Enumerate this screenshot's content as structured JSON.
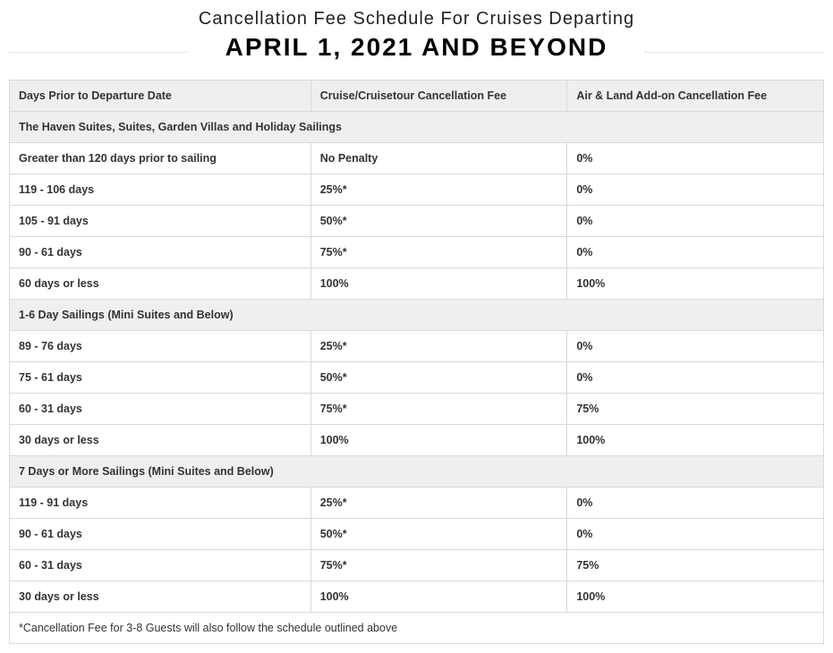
{
  "header": {
    "subtitle": "Cancellation Fee Schedule For Cruises Departing",
    "title": "APRIL 1, 2021 AND BEYOND"
  },
  "table": {
    "type": "table",
    "columns": [
      "Days Prior to Departure Date",
      "Cruise/Cruisetour Cancellation Fee",
      "Air & Land Add-on Cancellation Fee"
    ],
    "column_widths": [
      "37%",
      "31.5%",
      "31.5%"
    ],
    "header_bg": "#efefef",
    "section_bg": "#efefef",
    "border_color": "#d9d9d9",
    "text_color": "#333333",
    "font_size": 12.5,
    "sections": [
      {
        "label": "The Haven Suites, Suites, Garden Villas and Holiday Sailings",
        "rows": [
          [
            "Greater than 120 days prior to sailing",
            "No Penalty",
            "0%"
          ],
          [
            "119 - 106 days",
            "25%*",
            "0%"
          ],
          [
            "105 - 91 days",
            "50%*",
            "0%"
          ],
          [
            "90 - 61 days",
            "75%*",
            "0%"
          ],
          [
            "60 days or less",
            "100%",
            "100%"
          ]
        ]
      },
      {
        "label": "1-6 Day Sailings (Mini Suites and Below)",
        "rows": [
          [
            "89 - 76 days",
            "25%*",
            "0%"
          ],
          [
            "75 - 61 days",
            "50%*",
            "0%"
          ],
          [
            "60 - 31 days",
            "75%*",
            "75%"
          ],
          [
            "30 days or less",
            "100%",
            "100%"
          ]
        ]
      },
      {
        "label": "7 Days or More Sailings (Mini Suites and Below)",
        "rows": [
          [
            "119 - 91 days",
            "25%*",
            "0%"
          ],
          [
            "90 - 61 days",
            "50%*",
            "0%"
          ],
          [
            "60 - 31 days",
            "75%*",
            "75%"
          ],
          [
            "30 days or less",
            "100%",
            "100%"
          ]
        ]
      }
    ],
    "footnote": "*Cancellation Fee for 3-8 Guests will also follow the schedule outlined above"
  }
}
